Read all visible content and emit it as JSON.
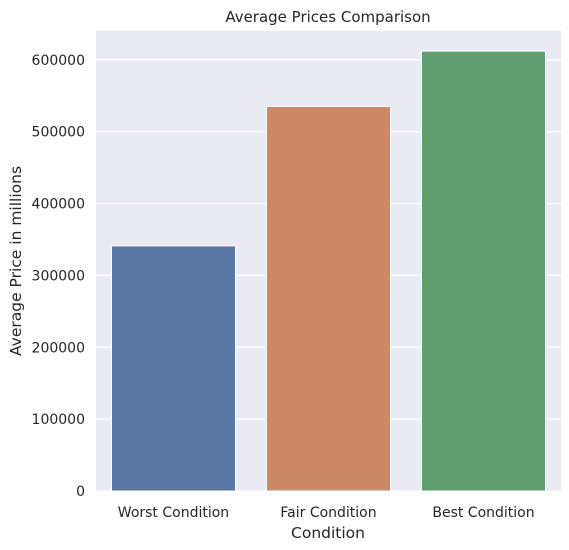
{
  "chart_data": {
    "type": "bar",
    "title": "Average Prices Comparison",
    "xlabel": "Condition",
    "ylabel": "Average Price in millions",
    "categories": [
      "Worst Condition",
      "Fair Condition",
      "Best Condition"
    ],
    "values": [
      341000,
      535000,
      612000
    ],
    "colors": [
      "#5975a4",
      "#cc8963",
      "#5f9e6e"
    ],
    "ylim": [
      0,
      640000
    ],
    "yticks": [
      "0",
      "100000",
      "200000",
      "300000",
      "400000",
      "500000",
      "600000"
    ],
    "grid": true,
    "plot_background": "#eaeaf2",
    "grid_color": "#ffffff"
  }
}
